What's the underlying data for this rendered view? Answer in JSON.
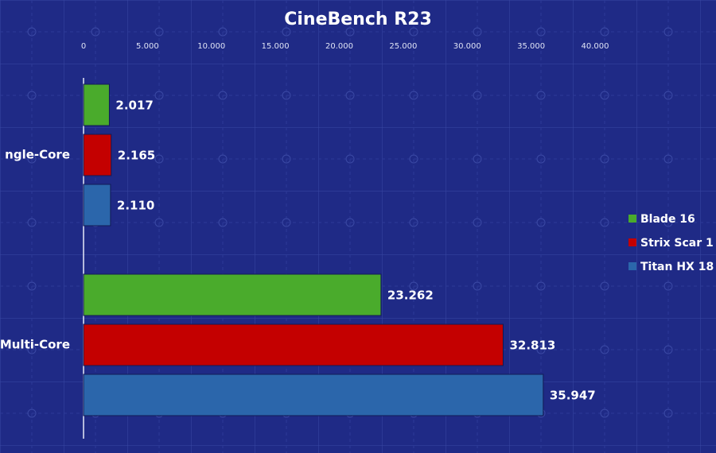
{
  "chart_data": {
    "type": "bar",
    "orientation": "horizontal",
    "title": "CineBench R23",
    "categories": [
      "ngle-Core",
      "Multi-Core"
    ],
    "series": [
      {
        "name": "Blade 16",
        "color": "#4aab2c",
        "values": [
          2017,
          23262
        ],
        "value_labels": [
          "2.017",
          "23.262"
        ]
      },
      {
        "name": "Strix Scar 1",
        "color": "#c40000",
        "values": [
          2165,
          32813
        ],
        "value_labels": [
          "2.165",
          "32.813"
        ]
      },
      {
        "name": "Titan HX 18",
        "color": "#2b66ab",
        "values": [
          2110,
          35947
        ],
        "value_labels": [
          "2.110",
          "35.947"
        ]
      }
    ],
    "xlim": [
      0,
      40000
    ],
    "xticks": [
      0,
      {
        "value": 5000,
        "label": "5.000"
      },
      {
        "value": 10000,
        "label": "10.000"
      },
      {
        "value": 15000,
        "label": "15.000"
      },
      {
        "value": 20000,
        "label": "20.000"
      },
      {
        "value": 25000,
        "label": "25.000"
      },
      {
        "value": 30000,
        "label": "30.000"
      },
      {
        "value": 35000,
        "label": "35.000"
      },
      {
        "value": 40000,
        "label": "40.000"
      }
    ],
    "legend": "right"
  }
}
